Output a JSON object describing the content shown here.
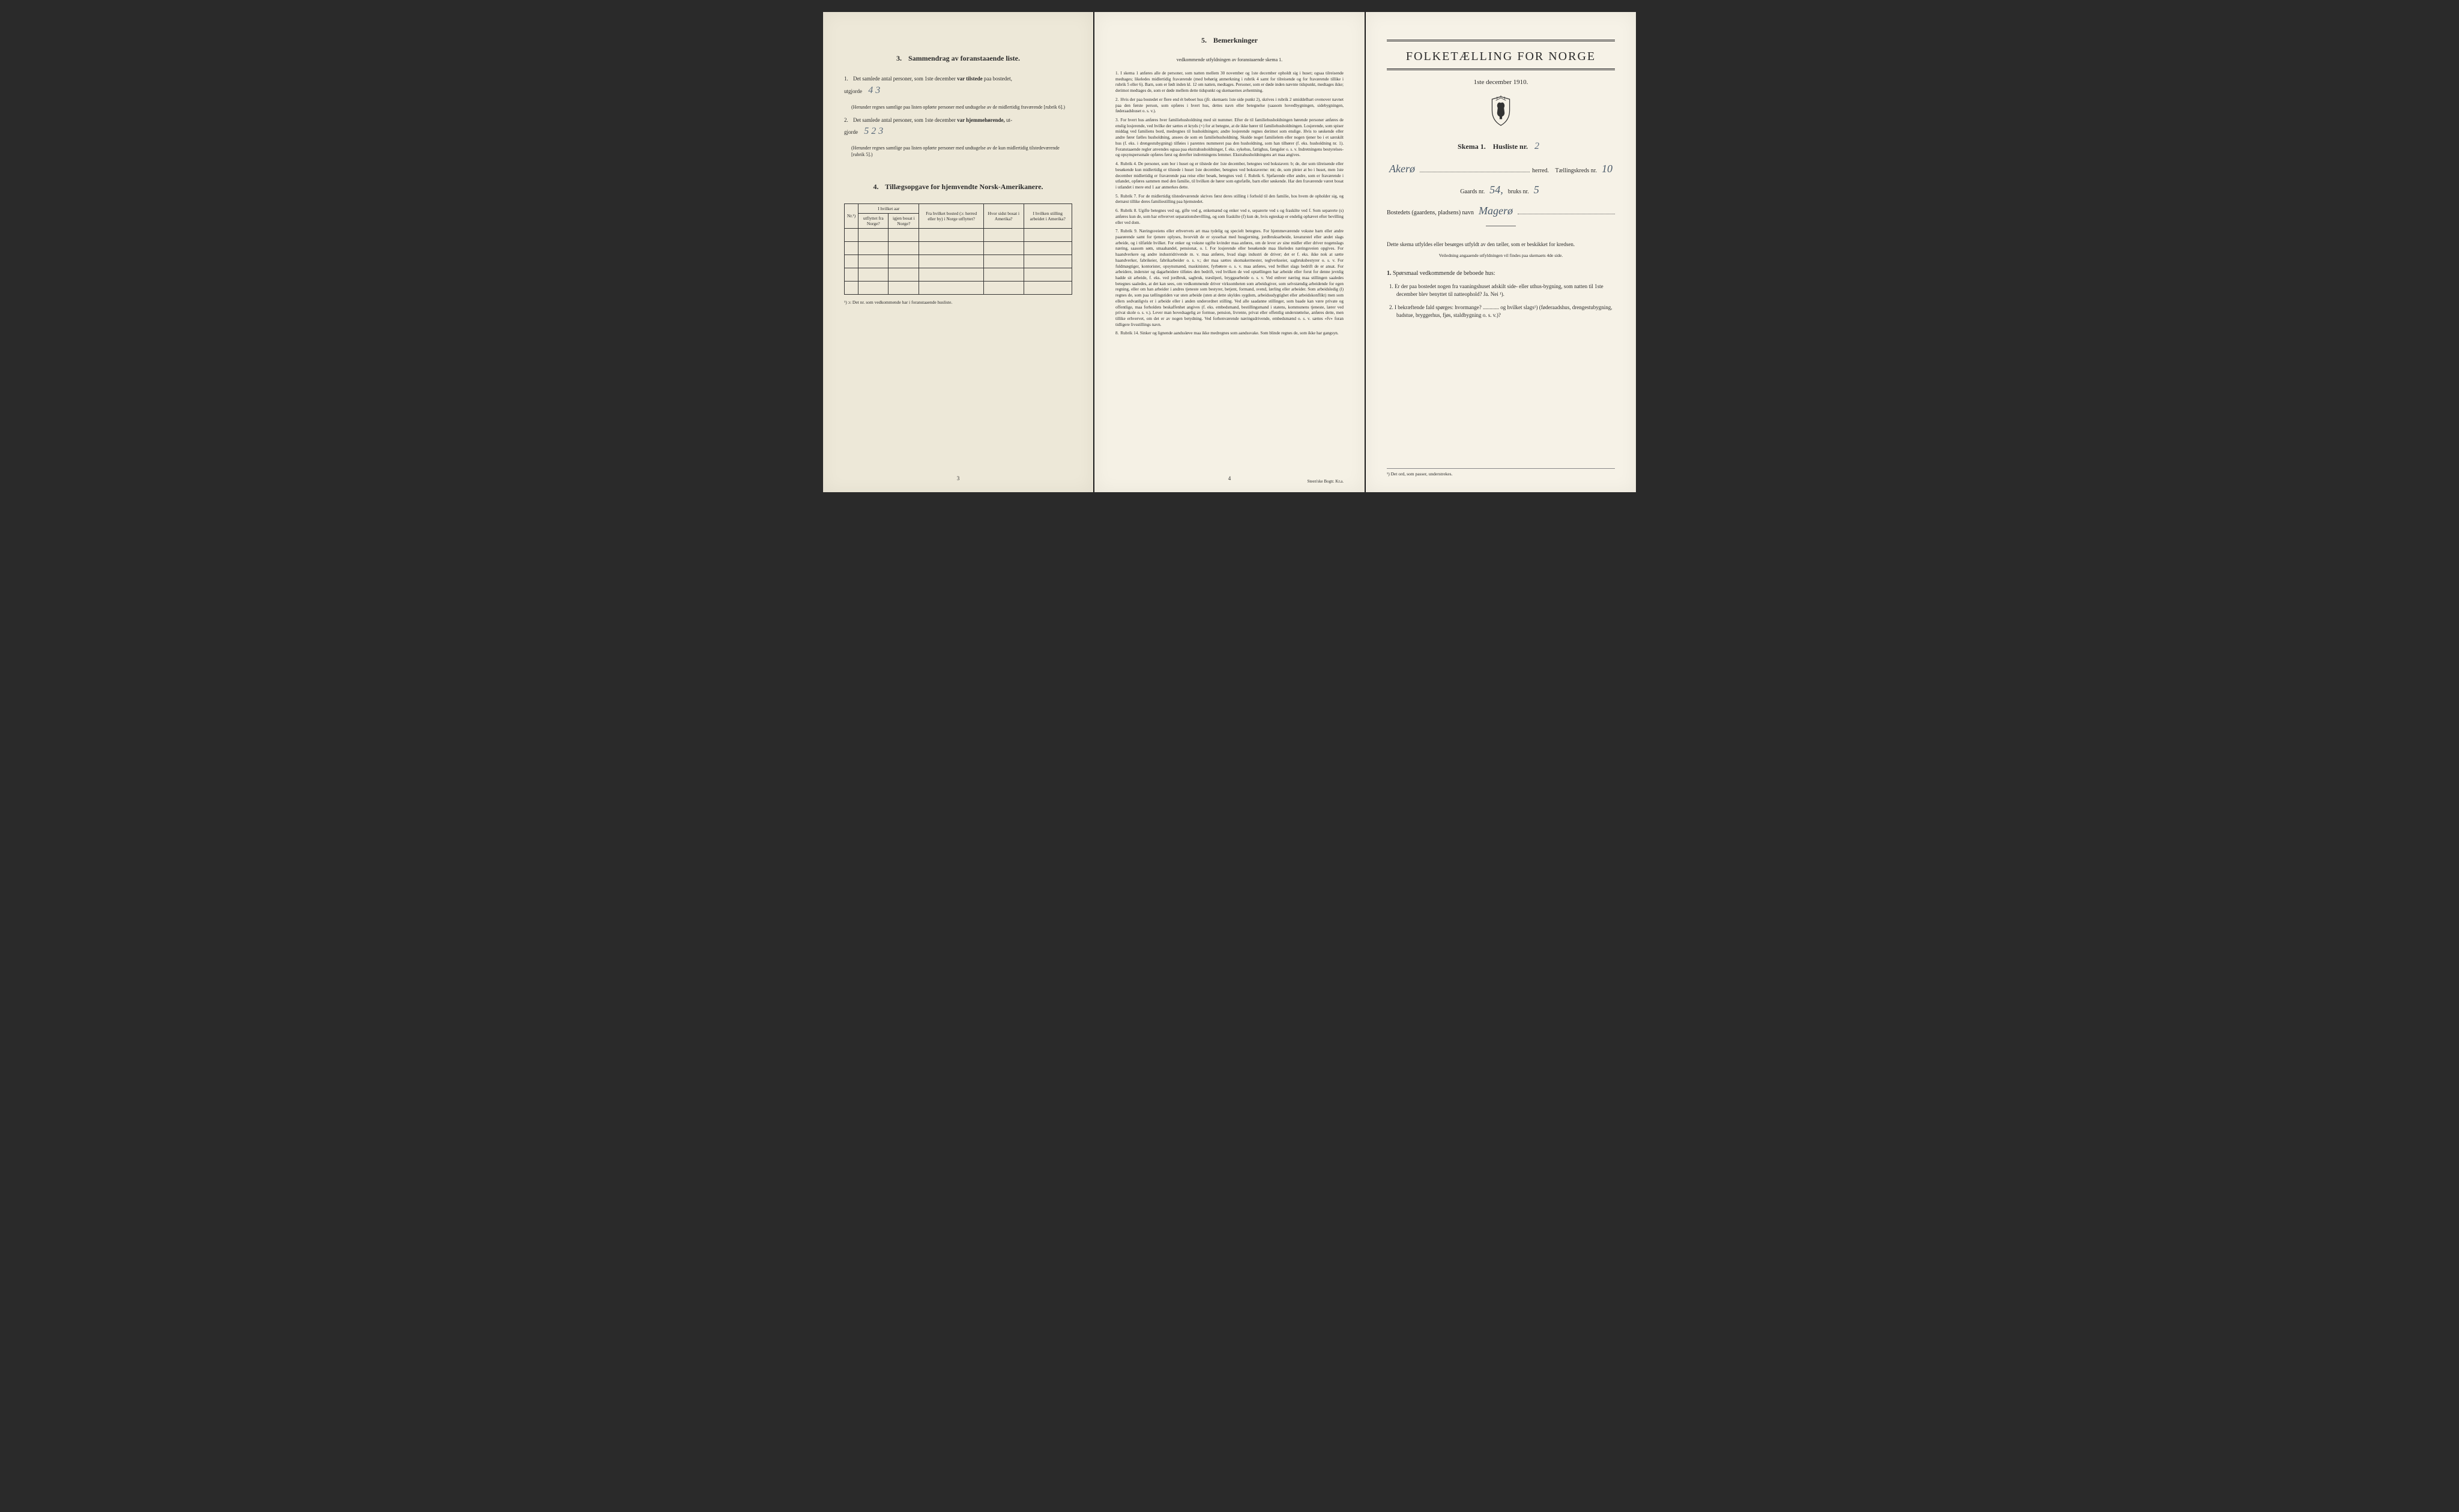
{
  "page3": {
    "heading_num": "3.",
    "heading": "Sammendrag av foranstaaende liste.",
    "item1_num": "1.",
    "item1_a": "Det samlede antal personer, som 1ste december",
    "item1_b": "var tilstede",
    "item1_c": "paa bostedet,",
    "item1_d": "utgjorde",
    "item1_hand": "4   3",
    "item1_sub": "(Herunder regnes samtlige paa listen opførte personer med undtagelse av de midlertidig fraværende [rubrik 6].)",
    "item2_num": "2.",
    "item2_a": "Det samlede antal personer, som 1ste december",
    "item2_b": "var hjemmehørende,",
    "item2_c": "ut-",
    "item2_d": "gjorde",
    "item2_hand": "5   2  3",
    "item2_sub": "(Herunder regnes samtlige paa listen opførte personer med undtagelse av de kun midlertidig tilstedeværende [rubrik 5].)",
    "sec4_num": "4.",
    "sec4_head": "Tillægsopgave for hjemvendte Norsk-Amerikanere.",
    "table": {
      "h_nr": "Nr.¹)",
      "h_aar_group": "I hvilket aar",
      "h_utfl": "utflyttet fra Norge?",
      "h_igjen": "igjen bosat i Norge?",
      "h_bosted": "Fra hvilket bosted (ɔ: herred eller by) i Norge utflyttet?",
      "h_sidst": "Hvor sidst bosat i Amerika?",
      "h_stilling": "I hvilken stilling arbeidet i Amerika?",
      "blank_rows": 5
    },
    "table_foot": "¹) ɔ: Det nr. som vedkommende har i foranstaaende husliste.",
    "pagenum": "3"
  },
  "page4": {
    "heading_num": "5.",
    "heading": "Bemerkninger",
    "subhead": "vedkommende utfyldningen av foranstaaende skema 1.",
    "remarks": [
      {
        "n": "1.",
        "t": "I skema 1 anføres alle de personer, som natten mellem 30 november og 1ste december opholdt sig i huset; ogsaa tilreisende medtages; likeledes midlertidig fraværende (med behørig anmerkning i rubrik 4 samt for tilreisende og for fraværende tillike i rubrik 5 eller 6). Barn, som er født inden kl. 12 om natten, medtages. Personer, som er døde inden nævnte tidspunkt, medtages ikke; derimot medtages de, som er døde mellem dette tidspunkt og skemaernes avhentning."
      },
      {
        "n": "2.",
        "t": "Hvis der paa bostedet er flere end ét beboet hus (jfr. skemaets 1ste side punkt 2), skrives i rubrik 2 umiddelbart ovenover navnet paa den første person, som opføres i hvert hus, dettes navn eller betegnelse (saasom hovedbygningen, sidebygningen, føderaadshuset o. s. v.)."
      },
      {
        "n": "3.",
        "t": "For hvert hus anføres hver familiehusholdning med sit nummer. Efter de til familiehusholdningen hørende personer anføres de enslig losjerende, ved hvilke der sættes et kryds (×) for at betegne, at de ikke hører til familiehusholdningen. Losjerende, som spiser middag ved familiens bord, medregnes til husholdningen; andre losjerende regnes derimot som enslige. Hvis to søskende eller andre fører fælles husholdning, ansees de som en familiehusholdning. Skulde noget familielem eller nogen tjener bo i et særskilt hus (f. eks. i drengestubygning) tilføies i parentes nummeret paa den husholdning, som han tilhører (f. eks. husholdning nr. 1).\n    Foranstaaende regler anvendes ogsaa paa ekstrahusholdninger, f. eks. sykehus, fattighus, fængsler o. s. v. Indretningens bestyrelses- og opsynspersonale opføres først og derefter indretningens lemmer. Ekstrahusholdningens art maa angives."
      },
      {
        "n": "4.",
        "t": "Rubrik 4. De personer, som bor i huset og er tilstede der 1ste december, betegnes ved bokstaven: b; de, der som tilreisende eller besøkende kun midlertidig er tilstede i huset 1ste december, betegnes ved bokstaverne: mt; de, som pleier at bo i huset, men 1ste december midlertidig er fraværende paa reise eller besøk, betegnes ved: f.\n    Rubrik 6. Sjøfarende eller andre, som er fraværende i utlandet, opføres sammen med den familie, til hvilken de hører som egtefælle, barn eller søskende.\n    Har den fraværende været bosat i utlandet i mere end 1 aar anmerkes dette."
      },
      {
        "n": "5.",
        "t": "Rubrik 7. For de midlertidig tilstedeværende skrives først deres stilling i forhold til den familie, hos hvem de opholder sig, og dernæst tillike deres familiestilling paa hjemstedet."
      },
      {
        "n": "6.",
        "t": "Rubrik 8. Ugifte betegnes ved ug, gifte ved g, enkemænd og enker ved e, separerte ved s og fraskilte ved f. Som separerte (s) anføres kun de, som har erhvervet separationsbevilling, og som fraskilte (f) kun de, hvis egteskap er endelig ophævet efter bevilling eller ved dom."
      },
      {
        "n": "7.",
        "t": "Rubrik 9. Næringsveiens eller erhvervets art maa tydelig og specielt betegnes.\n    For hjemmeværende voksne barn eller andre paarørende samt for tjenere oplyses, hvorvidt de er sysselsat med husgjerning, jordbruksarbeide, kreaturstel eller andet slags arbeide, og i tilfælde hvilket. For enker og voksne ugifte kvinder maa anføres, om de lever av sine midler eller driver nogenslags næring, saasom søm, smaahandel, pensionat, o. l.\n    For losjerende eller besøkende maa likeledes næringsveien opgives.\n    For haandverkere og andre industridrivende m. v. maa anføres, hvad slags industri de driver; det er f. eks. ikke nok at sætte haandverker, fabrikeier, fabrikarbeider o. s. v.; der maa sættes skomakermester, teglverkseier, sagbruksbestyrer o. s. v.\n    For fuldmægtiger, kontorister, opsynsmænd, maskinister, fyrbøtere o. s. v. maa anføres, ved hvilket slags bedrift de er ansat.\n    For arbeidere, inderster og dagarbeidere tilføies den bedrift, ved hvilken de ved optællingen har arbeide eller forut for denne jevnlig hadde sit arbeide, f. eks. ved jordbruk, sagbruk, træsliperi, bryggearbeide o. s. v.\n    Ved enhver næring maa stillingen saaledes betegnes saaledes, at det kan sees, om vedkommende driver virksomheten som arbeidsgiver, som selvstændig arbeidende for egen regning, eller om han arbeider i andres tjeneste som bestyrer, betjent, formand, svend, lærling eller arbeider.\n    Som arbeidsledig (l) regnes de, som paa tællingstiden var uten arbeide (uten at dette skyldes sygdom, arbeidsudygtighet eller arbeidskonflikt) men som ellers sedvanligvis er i arbeide eller i anden underordnet stilling.\n    Ved alle saadanne stillinger, som baade kan være private og offentlige, maa forholdets beskaffenhet angives (f. eks. embedsmand, bestillingsmand i statens, kommunens tjeneste, lærer ved privat skole o. s. v.).\n    Lever man hovedsagelig av formue, pension, livrente, privat eller offentlig understøttelse, anføres dette, men tillike erhvervet, om det er av nogen betydning.\n    Ved forhenværende næringsdrivende, embedsmænd o. s. v. sættes «fv» foran tidligere livsstillings navn."
      },
      {
        "n": "8.",
        "t": "Rubrik 14. Sinker og lignende aandssløve maa ikke medregnes som aandssvake.\n    Som blinde regnes de, som ikke har gangsyn."
      }
    ],
    "pagenum": "4",
    "printer": "Steen'ske Bogtr.  Kr.a."
  },
  "page1": {
    "title": "FOLKETÆLLING FOR NORGE",
    "date": "1ste december 1910.",
    "skema_a": "Skema 1.",
    "skema_b": "Husliste nr.",
    "skema_hand": "2",
    "herred_hand": "Akerø",
    "herred_label": "herred.",
    "kreds_label": "Tællingskreds nr.",
    "kreds_hand": "10",
    "gaard_label": "Gaards nr.",
    "gaard_hand": "54,",
    "bruk_label": "bruks nr.",
    "bruk_hand": "5",
    "bosted_label": "Bostedets (gaardens, pladsens) navn",
    "bosted_hand": "Magerø",
    "instr": "Dette skema utfyldes eller besørges utfyldt av den tæller, som er beskikket for kredsen.",
    "instr_sub": "Veiledning angaaende utfyldningen vil findes paa skemaets 4de side.",
    "q_head_num": "1.",
    "q_head": "Spørsmaal vedkommende de beboede hus:",
    "q1_num": "1.",
    "q1": "Er der paa bostedet nogen fra vaaningshuset adskilt side- eller uthus-bygning, som natten til 1ste december blev benyttet til natteophold?   Ja.   Nei ¹).",
    "q2_num": "2.",
    "q2": "I bekræftende fald spørges: hvormange? ............ og hvilket slags¹) (føderaadshus, drengestubygning, badstue, bryggerhus, fjøs, staldbygning o. s. v.)?",
    "foot": "¹) Det ord, som passer, understrekes."
  }
}
